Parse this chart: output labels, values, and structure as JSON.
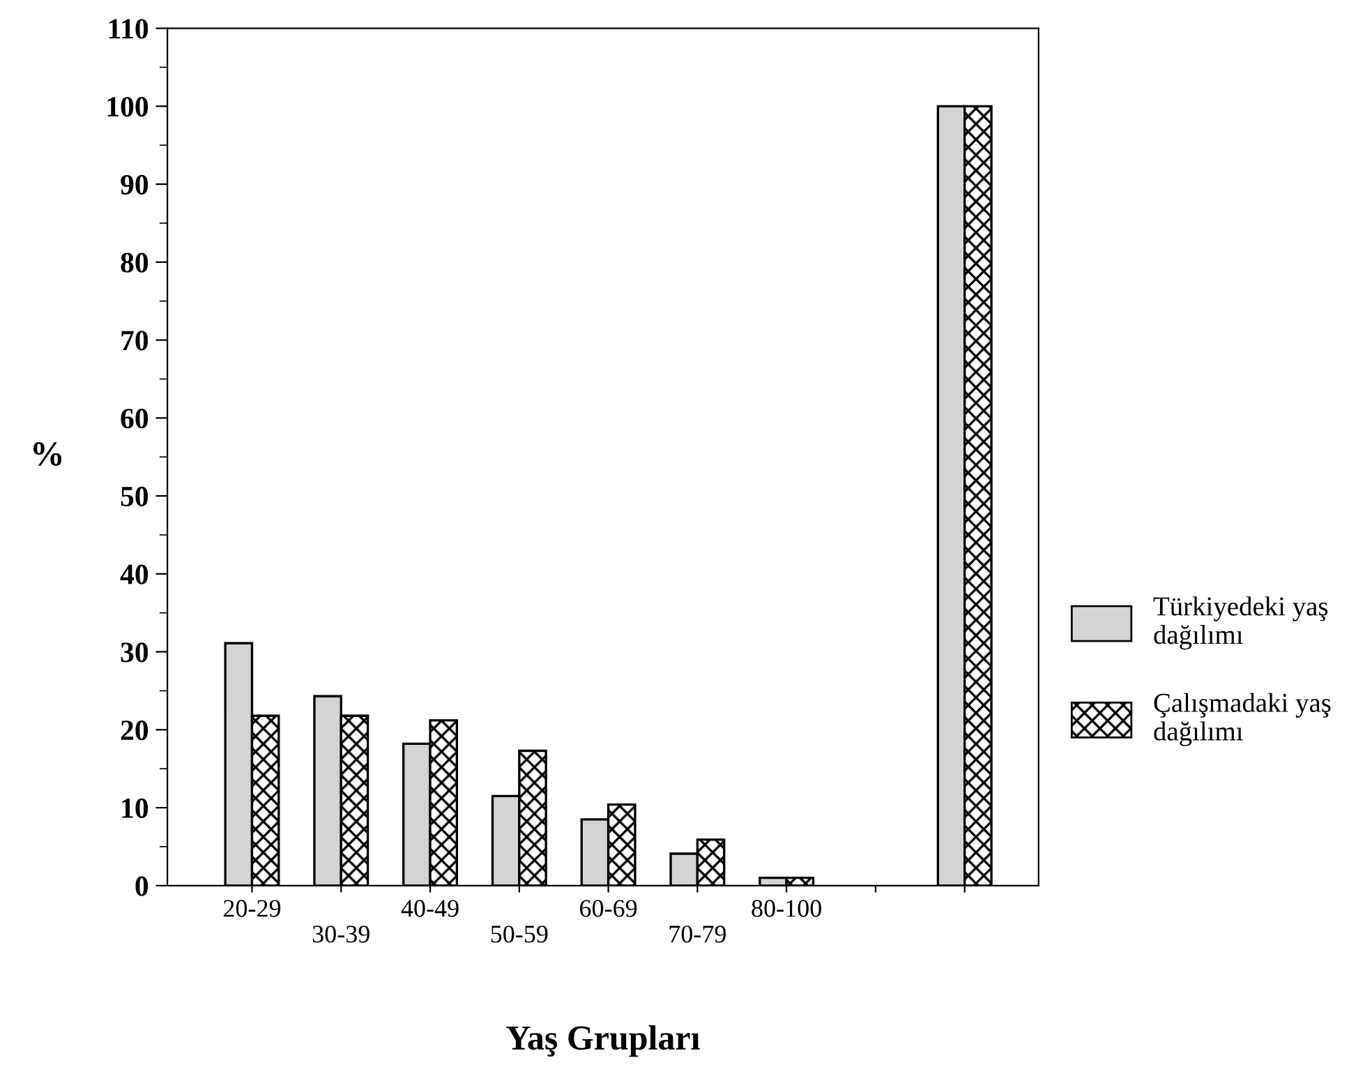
{
  "chart_data": {
    "type": "bar",
    "xlabel": "Yaş Grupları",
    "ylabel": "%",
    "categories": [
      "20-29",
      "30-39",
      "40-49",
      "50-59",
      "60-69",
      "70-79",
      "80-100",
      null,
      null
    ],
    "series": [
      {
        "name": "Türkiyedeki yaş\ndağılımı",
        "color": "#d4d4d4",
        "values": [
          31.1,
          24.3,
          18.2,
          11.5,
          8.5,
          4.1,
          1,
          null,
          100
        ]
      },
      {
        "name": "Çalışmadaki yaş\ndağılımı",
        "color": "#000000",
        "values": [
          21.8,
          21.8,
          21.2,
          17.3,
          10.4,
          5.9,
          1,
          null,
          100
        ]
      }
    ],
    "ylim": [
      0,
      110
    ],
    "yticks": [
      0,
      10,
      20,
      30,
      40,
      50,
      60,
      70,
      80,
      90,
      100,
      110
    ],
    "grid": false,
    "legend": "right"
  }
}
